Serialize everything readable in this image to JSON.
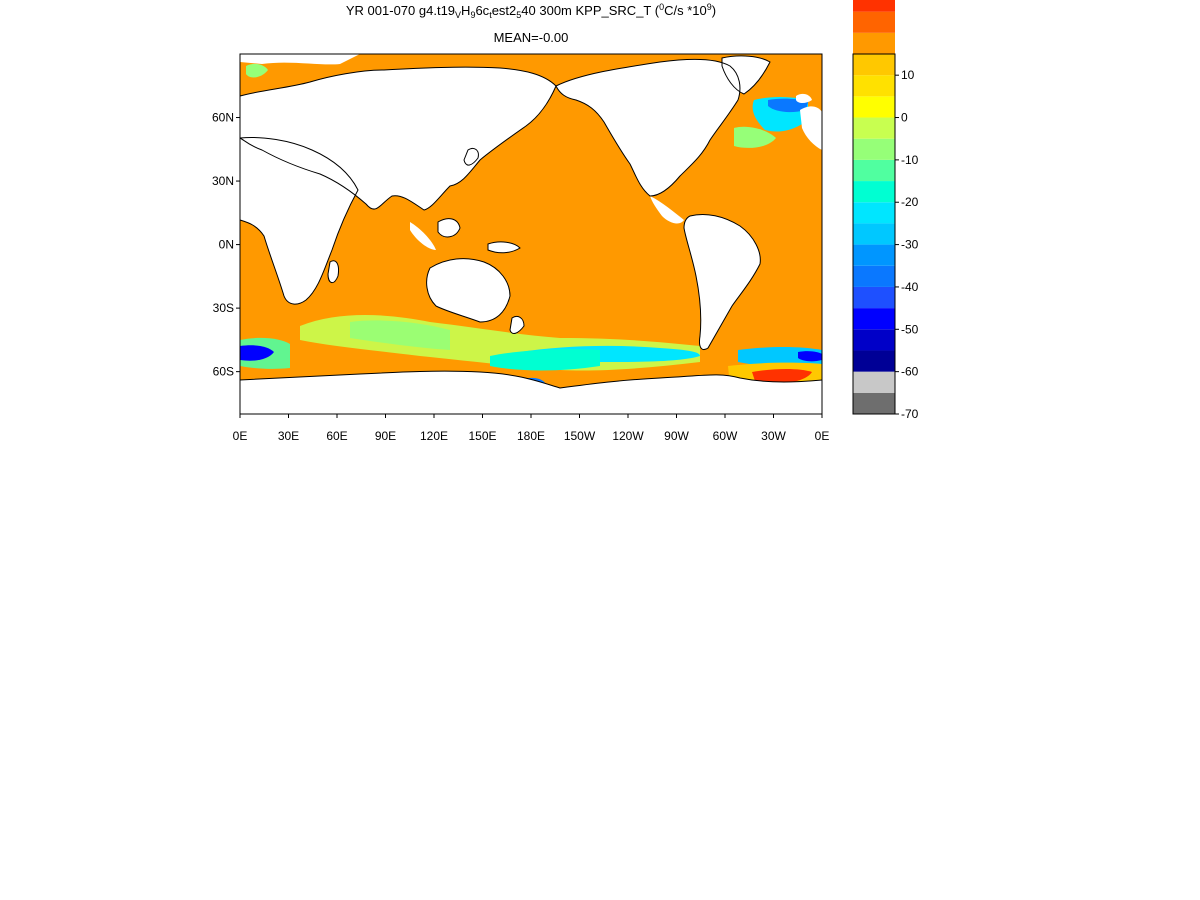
{
  "title": {
    "prefix": "YR 001-070 g4.t19",
    "sub1": "V",
    "mid1": "H",
    "sub2": "9",
    "mid2": "6c",
    "sub3": "t",
    "mid3": "est2",
    "sub4": "5",
    "mid4": "40 300m KPP_SRC_T (",
    "sup1": "0",
    "mid5": "C/s *10",
    "sup2": "9",
    "suffix": ")",
    "mean": "MEAN=-0.00"
  },
  "map": {
    "projection": "cylindrical equidistant",
    "lon_range": [
      0,
      360
    ],
    "lat_range": [
      -80,
      90
    ],
    "x_ticks": [
      {
        "lon": 0,
        "label": "0E"
      },
      {
        "lon": 30,
        "label": "30E"
      },
      {
        "lon": 60,
        "label": "60E"
      },
      {
        "lon": 90,
        "label": "90E"
      },
      {
        "lon": 120,
        "label": "120E"
      },
      {
        "lon": 150,
        "label": "150E"
      },
      {
        "lon": 180,
        "label": "180E"
      },
      {
        "lon": 210,
        "label": "150W"
      },
      {
        "lon": 240,
        "label": "120W"
      },
      {
        "lon": 270,
        "label": "90W"
      },
      {
        "lon": 300,
        "label": "60W"
      },
      {
        "lon": 330,
        "label": "30W"
      },
      {
        "lon": 360,
        "label": "0E"
      }
    ],
    "y_ticks": [
      {
        "lat": 60,
        "label": "60N"
      },
      {
        "lat": 30,
        "label": "30N"
      },
      {
        "lat": 0,
        "label": "0N"
      },
      {
        "lat": -30,
        "label": "30S"
      },
      {
        "lat": -60,
        "label": "60S"
      }
    ],
    "ocean_color": "#ff9900",
    "land_color": "#ffffff",
    "coast_color": "#000000"
  },
  "colorbar": {
    "min": -70,
    "max": 15,
    "step": 5,
    "colors": [
      "#6e6e6e",
      "#c8c8c8",
      "#000096",
      "#0000c8",
      "#0000ff",
      "#1e50ff",
      "#0a78ff",
      "#0096ff",
      "#00c8ff",
      "#00e6ff",
      "#00ffd2",
      "#50ffa0",
      "#96ff78",
      "#c8ff50",
      "#ffff00",
      "#ffe100",
      "#ffc800",
      "#ff9900",
      "#ff6400",
      "#ff3200",
      "#ff0000"
    ],
    "labels": [
      {
        "value": 10,
        "label": "10"
      },
      {
        "value": 0,
        "label": "0"
      },
      {
        "value": -10,
        "label": "-10"
      },
      {
        "value": -20,
        "label": "-20"
      },
      {
        "value": -30,
        "label": "-30"
      },
      {
        "value": -40,
        "label": "-40"
      },
      {
        "value": -50,
        "label": "-50"
      },
      {
        "value": -60,
        "label": "-60"
      },
      {
        "value": -70,
        "label": "-70"
      }
    ]
  }
}
